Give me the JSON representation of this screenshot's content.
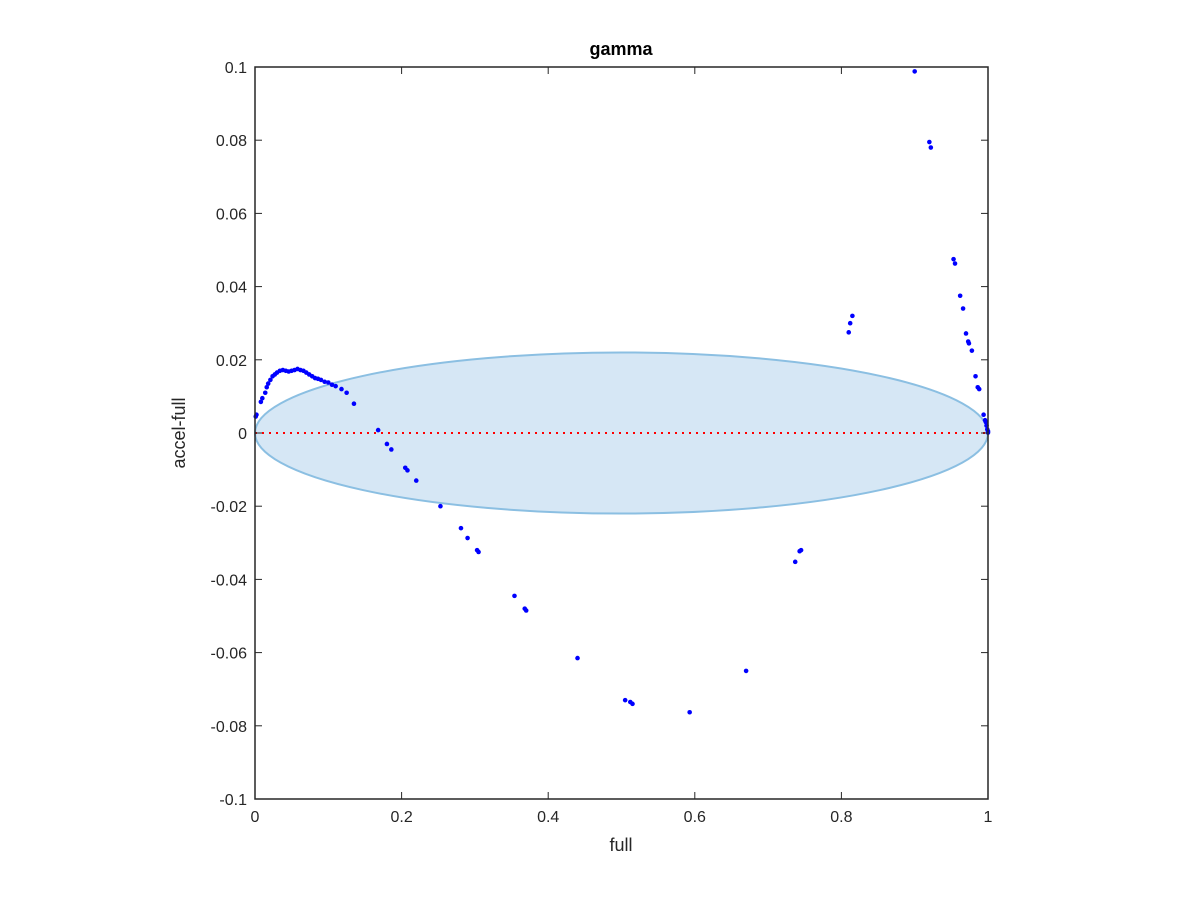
{
  "chart_data": {
    "type": "scatter",
    "title": "gamma",
    "xlabel": "full",
    "ylabel": "accel-full",
    "xlim": [
      0,
      1
    ],
    "ylim": [
      -0.1,
      0.1
    ],
    "xticks": [
      0,
      0.2,
      0.4,
      0.6,
      0.8,
      1
    ],
    "xtick_labels": [
      "0",
      "0.2",
      "0.4",
      "0.6",
      "0.8",
      "1"
    ],
    "yticks": [
      -0.1,
      -0.08,
      -0.06,
      -0.04,
      -0.02,
      0,
      0.02,
      0.04,
      0.06,
      0.08,
      0.1
    ],
    "ytick_labels": [
      "-0.1",
      "-0.08",
      "-0.06",
      "-0.04",
      "-0.02",
      "0",
      "0.02",
      "0.04",
      "0.06",
      "0.08",
      "0.1"
    ],
    "grid": false,
    "colors": {
      "points": "#0000ff",
      "zero_line": "#ff0000",
      "ellipse_fill": "#d6e7f5",
      "ellipse_edge": "#8bbfe2",
      "axes": "#262626"
    },
    "zero_line": {
      "y": 0,
      "style": "dotted"
    },
    "ellipse": {
      "cx": 0.5,
      "cy": 0,
      "rx": 0.5,
      "ry": 0.022
    },
    "series": [
      {
        "points": [
          [
            0.001,
            0.0045
          ],
          [
            0.002,
            0.005
          ],
          [
            0.008,
            0.0085
          ],
          [
            0.01,
            0.0095
          ],
          [
            0.014,
            0.011
          ],
          [
            0.016,
            0.0125
          ],
          [
            0.018,
            0.0135
          ],
          [
            0.021,
            0.0145
          ],
          [
            0.024,
            0.0155
          ],
          [
            0.027,
            0.016
          ],
          [
            0.03,
            0.0165
          ],
          [
            0.034,
            0.017
          ],
          [
            0.038,
            0.0172
          ],
          [
            0.042,
            0.017
          ],
          [
            0.046,
            0.0168
          ],
          [
            0.05,
            0.017
          ],
          [
            0.054,
            0.0172
          ],
          [
            0.058,
            0.0175
          ],
          [
            0.062,
            0.0172
          ],
          [
            0.066,
            0.017
          ],
          [
            0.07,
            0.0165
          ],
          [
            0.074,
            0.016
          ],
          [
            0.078,
            0.0155
          ],
          [
            0.082,
            0.015
          ],
          [
            0.086,
            0.0148
          ],
          [
            0.09,
            0.0145
          ],
          [
            0.095,
            0.014
          ],
          [
            0.1,
            0.0138
          ],
          [
            0.105,
            0.0132
          ],
          [
            0.11,
            0.0128
          ],
          [
            0.118,
            0.012
          ],
          [
            0.125,
            0.011
          ],
          [
            0.135,
            0.008
          ],
          [
            0.168,
            0.0008
          ],
          [
            0.18,
            -0.003
          ],
          [
            0.186,
            -0.0045
          ],
          [
            0.205,
            -0.0095
          ],
          [
            0.208,
            -0.0102
          ],
          [
            0.22,
            -0.013
          ],
          [
            0.253,
            -0.02
          ],
          [
            0.281,
            -0.026
          ],
          [
            0.29,
            -0.0287
          ],
          [
            0.303,
            -0.032
          ],
          [
            0.305,
            -0.0325
          ],
          [
            0.354,
            -0.0445
          ],
          [
            0.368,
            -0.048
          ],
          [
            0.37,
            -0.0485
          ],
          [
            0.44,
            -0.0615
          ],
          [
            0.505,
            -0.073
          ],
          [
            0.512,
            -0.0735
          ],
          [
            0.515,
            -0.074
          ],
          [
            0.593,
            -0.0763
          ],
          [
            0.67,
            -0.065
          ],
          [
            0.737,
            -0.0352
          ],
          [
            0.743,
            -0.0323
          ],
          [
            0.745,
            -0.032
          ],
          [
            0.81,
            0.0275
          ],
          [
            0.812,
            0.03
          ],
          [
            0.815,
            0.032
          ],
          [
            0.9,
            0.0988
          ],
          [
            0.92,
            0.0795
          ],
          [
            0.922,
            0.078
          ],
          [
            0.953,
            0.0475
          ],
          [
            0.955,
            0.0463
          ],
          [
            0.962,
            0.0375
          ],
          [
            0.966,
            0.034
          ],
          [
            0.97,
            0.0272
          ],
          [
            0.973,
            0.025
          ],
          [
            0.974,
            0.0245
          ],
          [
            0.978,
            0.0225
          ],
          [
            0.983,
            0.0155
          ],
          [
            0.986,
            0.0125
          ],
          [
            0.988,
            0.012
          ],
          [
            0.994,
            0.005
          ],
          [
            0.996,
            0.0035
          ],
          [
            0.997,
            0.003
          ],
          [
            0.998,
            0.002
          ],
          [
            0.999,
            0.001
          ],
          [
            1.0,
            0.0005
          ],
          [
            1.0,
            0.0001
          ]
        ]
      }
    ]
  }
}
